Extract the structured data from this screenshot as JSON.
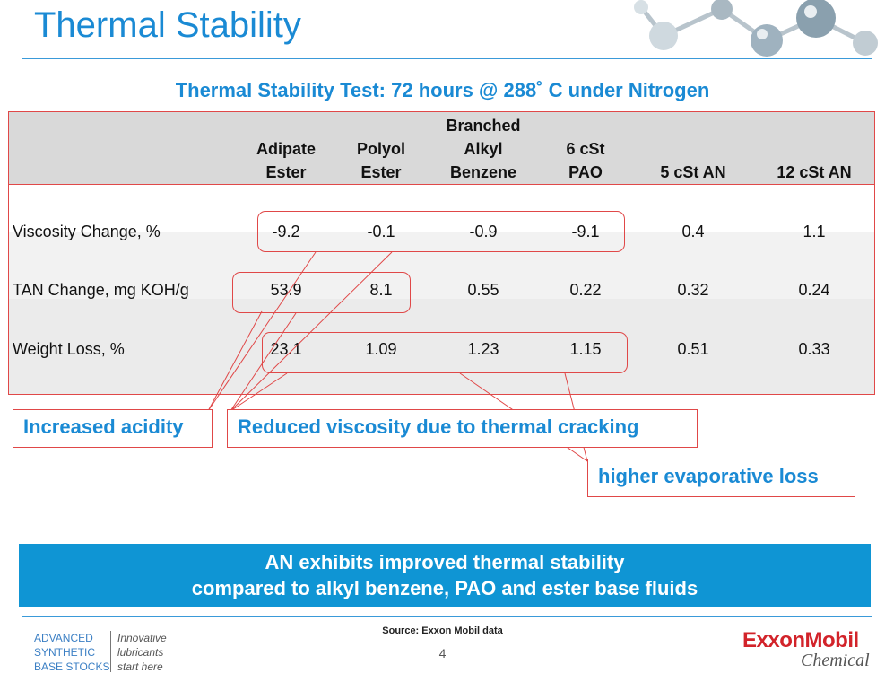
{
  "slide": {
    "title": "Thermal Stability",
    "subtitle": "Thermal Stability Test:  72 hours @ 288˚ C under Nitrogen"
  },
  "table": {
    "header_lines": [
      [
        "Adipate",
        "Ester"
      ],
      [
        "Polyol",
        "Ester"
      ],
      [
        "Branched",
        "Alkyl",
        "Benzene"
      ],
      [
        "6 cSt",
        "PAO"
      ],
      [
        "5 cSt AN"
      ],
      [
        "12 cSt AN"
      ]
    ],
    "rows": [
      {
        "label": "Viscosity Change, %",
        "values": [
          "-9.2",
          "-0.1",
          "-0.9",
          "-9.1",
          "0.4",
          "1.1"
        ]
      },
      {
        "label": "TAN Change, mg KOH/g",
        "values": [
          "53.9",
          "8.1",
          "0.55",
          "0.22",
          "0.32",
          "0.24"
        ]
      },
      {
        "label": "Weight Loss, %",
        "values": [
          "23.1",
          "1.09",
          "1.23",
          "1.15",
          "0.51",
          "0.33"
        ]
      }
    ]
  },
  "callouts": {
    "acidity": "Increased acidity",
    "viscosity": "Reduced viscosity due to thermal cracking",
    "evaporative": "higher evaporative loss"
  },
  "banner": {
    "line1": "AN exhibits improved thermal stability",
    "line2": "compared to alkyl benzene, PAO and ester base fluids"
  },
  "footer": {
    "source": "Source: Exxon Mobil data",
    "page": "4",
    "brand_left_lines": [
      "ADVANCED",
      "SYNTHETIC",
      "BASE STOCKS"
    ],
    "brand_tag_lines": [
      "Innovative",
      "lubricants",
      "start here"
    ],
    "logo_exxon": "ExxonMobil",
    "logo_chemical": "Chemical"
  },
  "colors": {
    "accent": "#1a8ad4",
    "callout_border": "#e04848",
    "banner": "#0f95d4"
  }
}
